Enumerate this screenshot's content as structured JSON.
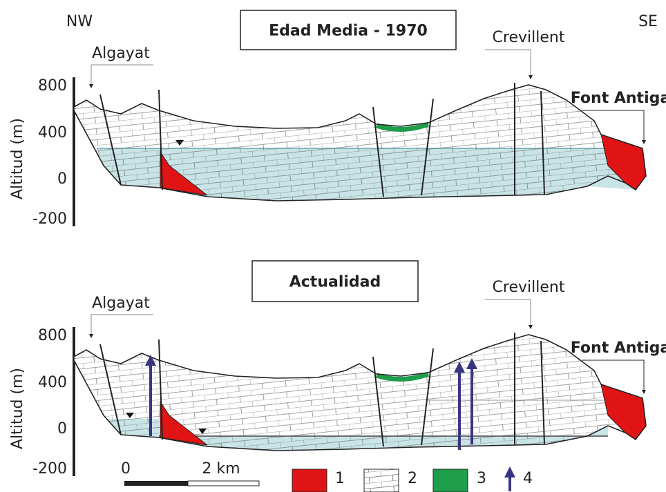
{
  "corners": {
    "nw": "NW",
    "se": "SE"
  },
  "panels": [
    {
      "title": "Edad Media - 1970",
      "axis_label": "Altitud (m)",
      "ticks": [
        "800",
        "400",
        "0",
        "-200"
      ],
      "labels": {
        "algayat": "Algayat",
        "crevillent": "Crevillent",
        "font_antiga": "Font Antiga"
      }
    },
    {
      "title": "Actualidad",
      "axis_label": "Altitud (m)",
      "ticks": [
        "800",
        "400",
        "0",
        "-200"
      ],
      "labels": {
        "algayat": "Algayat",
        "crevillent": "Crevillent",
        "font_antiga": "Font Antiga"
      }
    }
  ],
  "scale": {
    "start": "0",
    "end": "2 km"
  },
  "legend": [
    "1",
    "2",
    "3",
    "4"
  ]
}
